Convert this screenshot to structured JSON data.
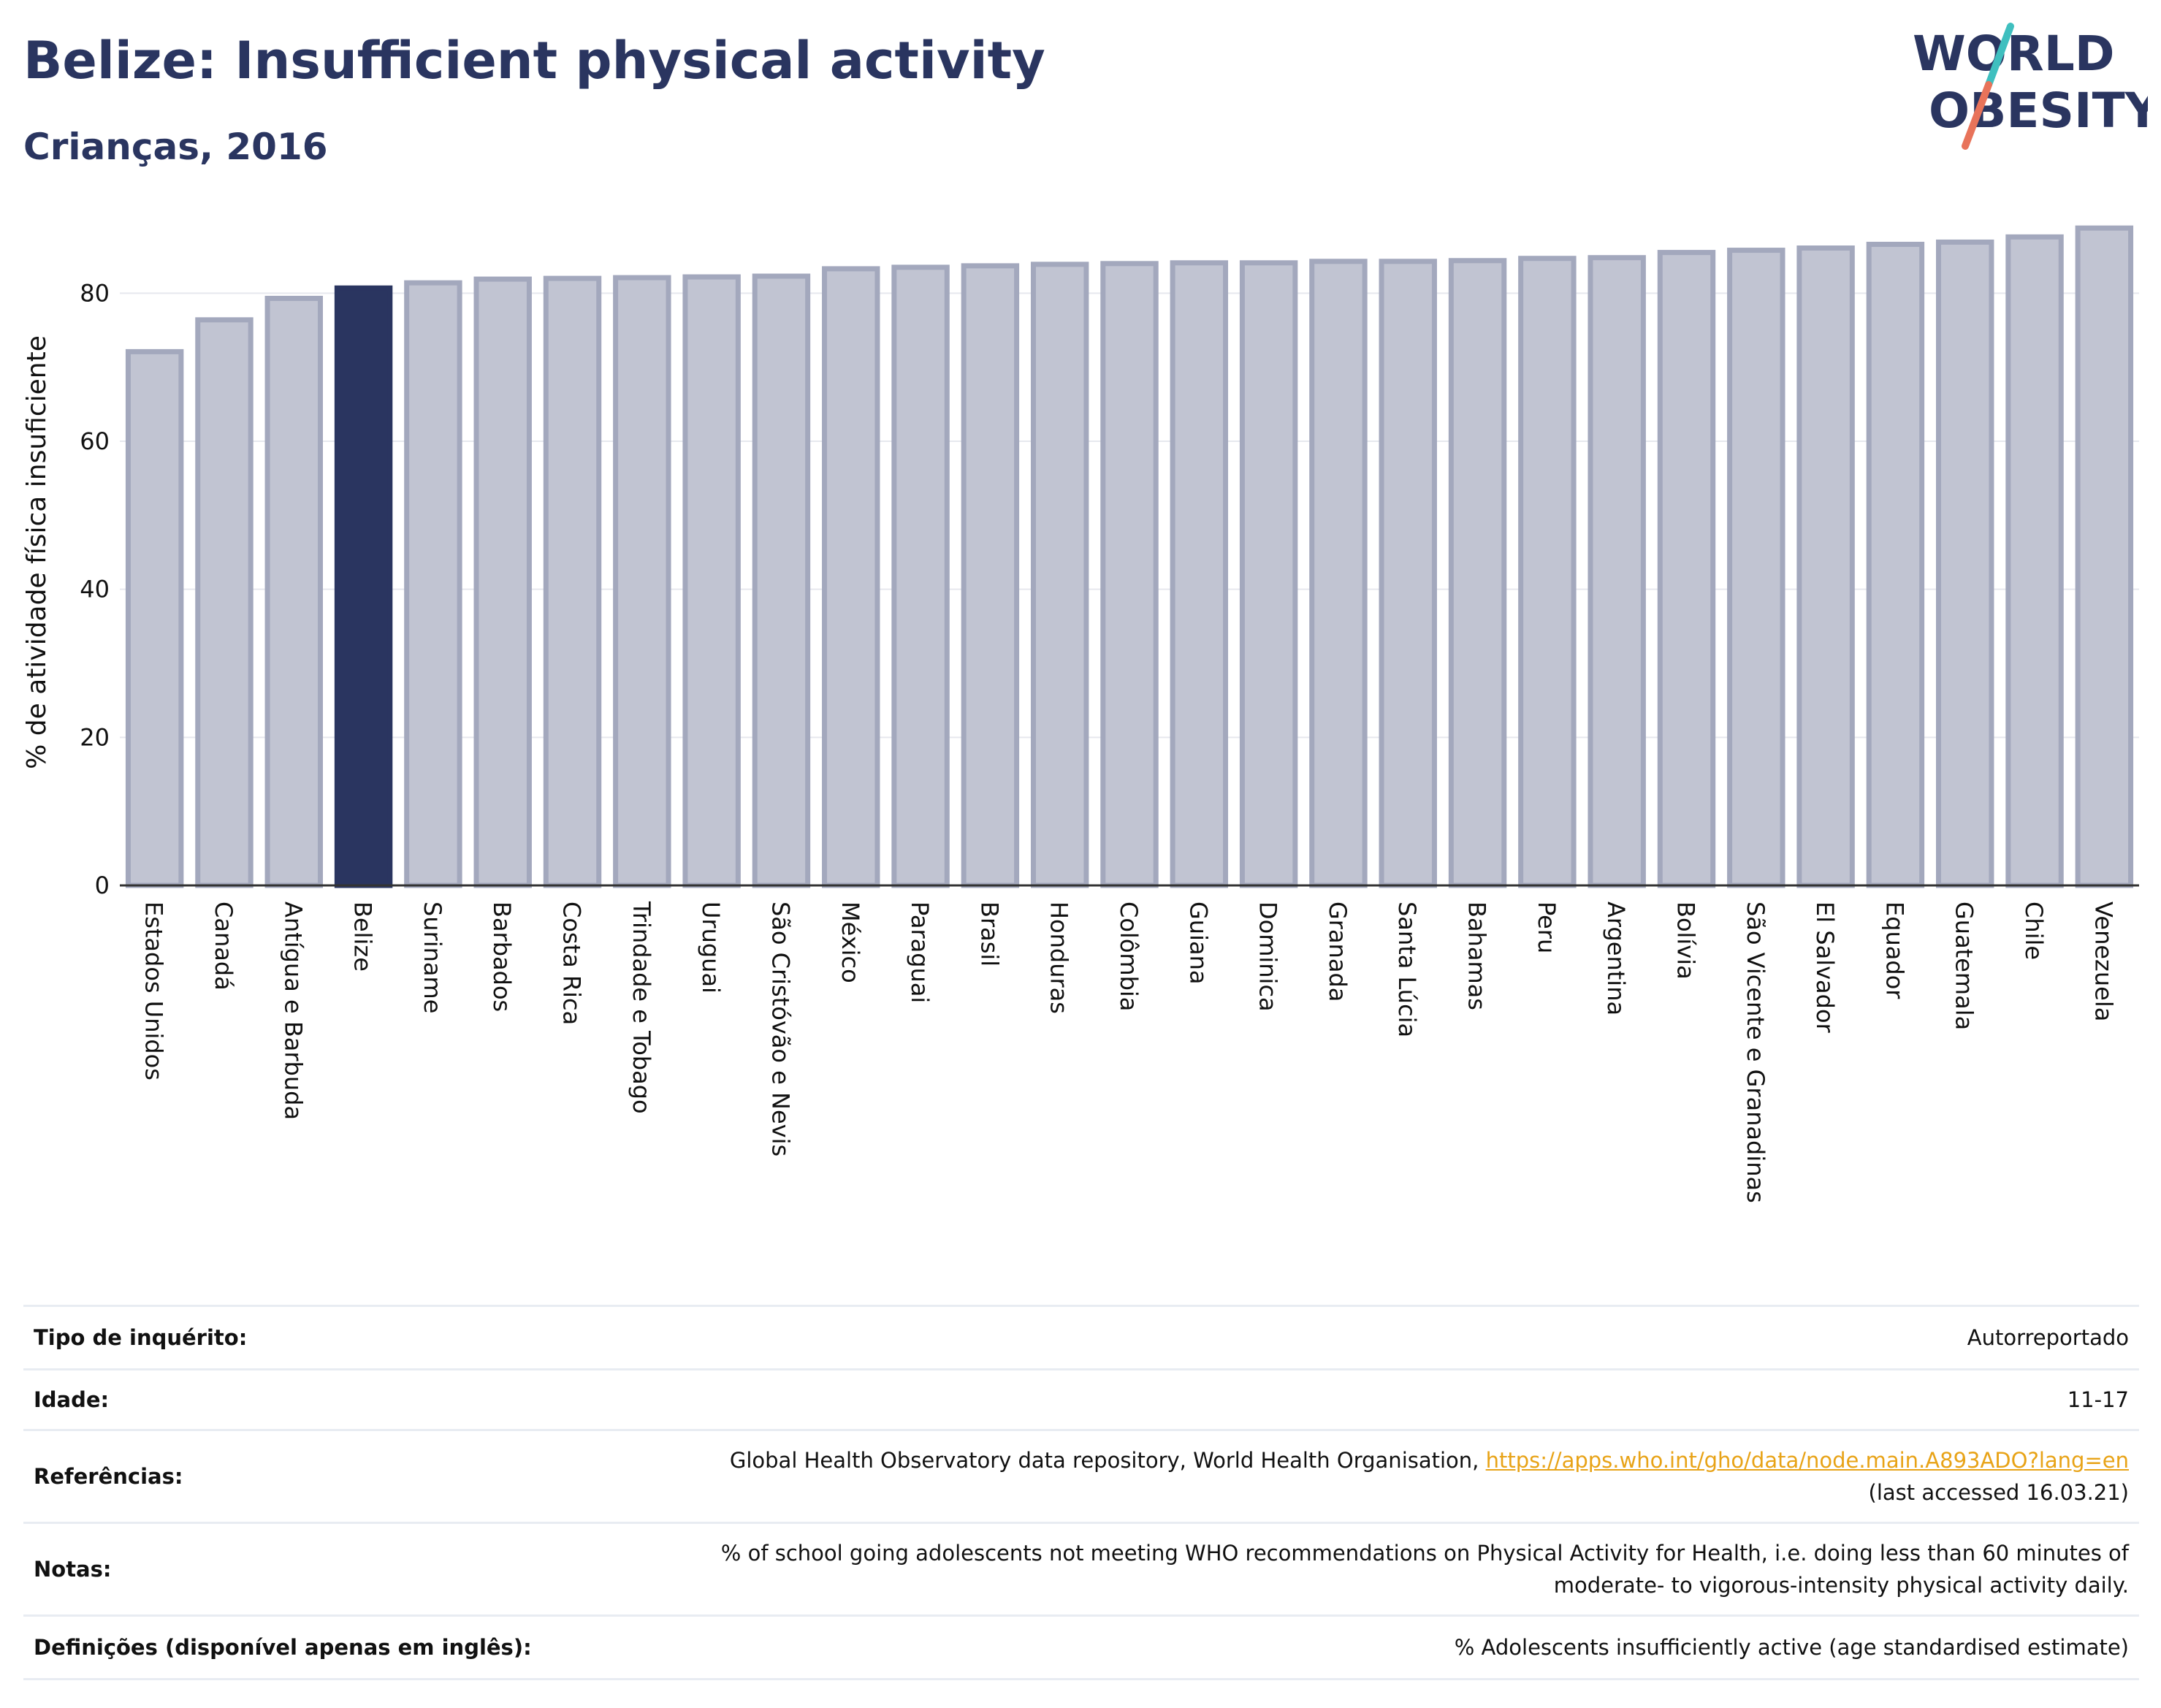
{
  "header": {
    "title": "Belize: Insufficient physical activity",
    "subtitle": "Crianças, 2016"
  },
  "logo": {
    "line1": "WORLD",
    "line2": "OBESITY",
    "text_color": "#2a3560",
    "slash_colors": [
      "#3fbfbf",
      "#e8735a"
    ]
  },
  "chart_data": {
    "type": "bar",
    "title": "Belize: Insufficient physical activity",
    "subtitle": "Crianças, 2016",
    "xlabel": "",
    "ylabel": "% de atividade física insuficiente",
    "ylim": [
      0,
      90
    ],
    "yticks": [
      0,
      20,
      40,
      60,
      80
    ],
    "grid": true,
    "highlight": "Belize",
    "colors": {
      "bar": "#c1c4d2",
      "bar_border": "#a3a8bd",
      "highlight": "#2a3560"
    },
    "categories": [
      "Estados Unidos",
      "Canadá",
      "Antígua e Barbuda",
      "Belize",
      "Suriname",
      "Barbados",
      "Costa Rica",
      "Trindade e Tobago",
      "Uruguai",
      "São Cristóvão e Nevis",
      "México",
      "Paraguai",
      "Brasil",
      "Honduras",
      "Colômbia",
      "Guiana",
      "Dominica",
      "Granada",
      "Santa Lúcia",
      "Bahamas",
      "Peru",
      "Argentina",
      "Bolívia",
      "São Vicente e Granadinas",
      "El Salvador",
      "Equador",
      "Guatemala",
      "Chile",
      "Venezuela"
    ],
    "values": [
      72.1,
      76.4,
      79.3,
      80.7,
      81.4,
      81.9,
      82.0,
      82.1,
      82.2,
      82.3,
      83.3,
      83.5,
      83.7,
      83.9,
      84.0,
      84.1,
      84.1,
      84.3,
      84.3,
      84.4,
      84.7,
      84.8,
      85.5,
      85.8,
      86.1,
      86.6,
      86.9,
      87.6,
      88.8
    ]
  },
  "info_table": [
    {
      "label": "Tipo de inquérito:",
      "value": "Autorreportado"
    },
    {
      "label": "Idade:",
      "value": "11-17"
    },
    {
      "label": "Referências:",
      "value": "Global Health Observatory data repository, World Health Organisation,",
      "link": "https://apps.who.int/gho/data/node.main.A893ADO?lang=en",
      "value2": "(last accessed 16.03.21)"
    },
    {
      "label": "Notas:",
      "value": "% of school going adolescents not meeting WHO recommendations on Physical Activity for Health, i.e. doing less than 60 minutes of",
      "value2": "moderate- to vigorous-intensity physical activity daily."
    },
    {
      "label": "Definições (disponível apenas em inglês):",
      "value": "% Adolescents insufficiently active (age standardised estimate)"
    }
  ]
}
